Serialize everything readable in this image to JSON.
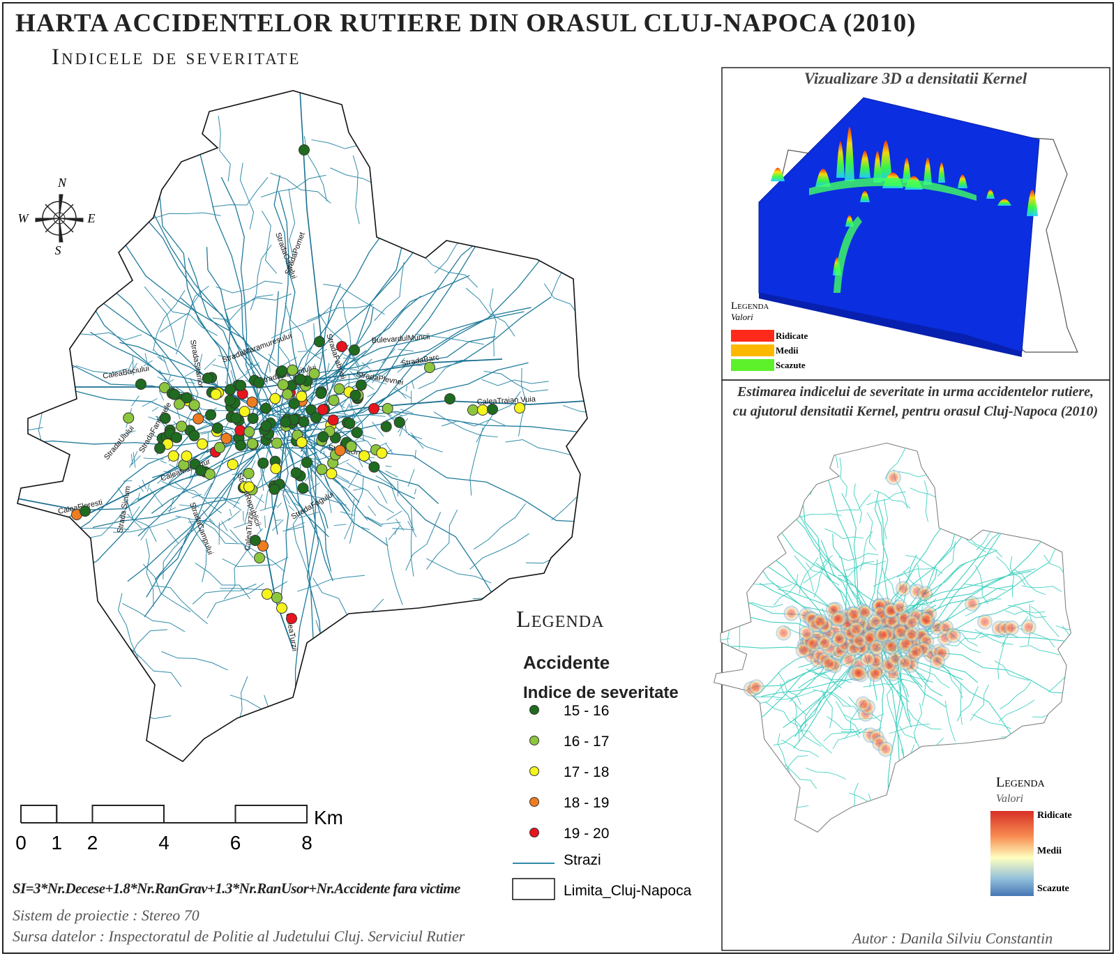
{
  "header": {
    "title": "HARTA ACCIDENTELOR RUTIERE DIN ORASUL CLUJ-NAPOCA (2010)",
    "subtitle": "Indicele de severitate"
  },
  "compass": {
    "n": "N",
    "s": "S",
    "e": "E",
    "w": "W"
  },
  "streets": [
    "StradaOasului",
    "StradaPomet",
    "BulevardulMuncii",
    "StradaFabricii",
    "StradaBarc",
    "StradaPlevnei",
    "CaleaTraian Vuia",
    "CaleaBaciului",
    "StradaSitarilor",
    "StradaMaramuresului",
    "StradaRasaritului",
    "StradaUlului",
    "StradaFantanele",
    "CaleaManastur",
    "StradaRepublicii",
    "StradaUnirii",
    "CaleaFloresti",
    "Strada Sicium",
    "StradaCampului",
    "CaleaTurzii",
    "StradaFagului",
    "CaleaTurzii"
  ],
  "legend": {
    "title": "Legenda",
    "group": "Accidente",
    "subtitle": "Indice de severitate",
    "classes": [
      {
        "label": "15 - 16",
        "color": "#1f6b1f"
      },
      {
        "label": "16 - 17",
        "color": "#8cc63e"
      },
      {
        "label": "17 - 18",
        "color": "#f5f51e"
      },
      {
        "label": "18 - 19",
        "color": "#ee7d21"
      },
      {
        "label": "19 - 20",
        "color": "#e8141e"
      }
    ],
    "streets": "Strazi",
    "boundary": "Limita_Cluj-Napoca"
  },
  "scale": {
    "ticks": [
      0,
      1,
      2,
      4,
      6,
      8
    ],
    "unit": "Km"
  },
  "formula": "SI=3*Nr.Decese+1.8*Nr.RanGrav+1.3*Nr.RanUsor+Nr.Accidente fara victime",
  "projection": "Sistem de proiectie : Stereo 70",
  "source": "Sursa datelor : Inspectoratul de Politie al Judetului Cluj. Serviciul Rutier",
  "inset_3d": {
    "title": "Vizualizare 3D a densitatii Kernel",
    "legend_title": "Legenda",
    "legend_subtitle": "Valori",
    "classes": [
      {
        "label": "Ridicate",
        "color": "#ff2a1a"
      },
      {
        "label": "Medii",
        "color": "#ffb800"
      },
      {
        "label": "Scazute",
        "color": "#5cf12a"
      }
    ]
  },
  "inset_kernel": {
    "title": "Estimarea indicelui de severitate in urma accidentelor rutiere, cu ajutorul densitatii Kernel, pentru orasul Cluj-Napoca (2010)",
    "legend_title": "Legenda",
    "legend_subtitle": "Valori",
    "labels": [
      "Ridicate",
      "Medii",
      "Scazute"
    ]
  },
  "author": "Autor : Danila Silviu Constantin"
}
